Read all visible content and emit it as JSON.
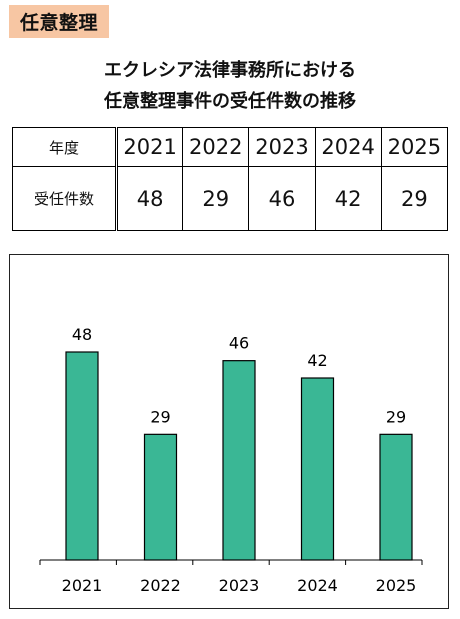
{
  "tag": "任意整理",
  "title": {
    "line1": "エクレシア法律事務所における",
    "line2": "任意整理事件の受任件数の推移"
  },
  "table": {
    "row_labels": [
      "年度",
      "受任件数"
    ],
    "years": [
      "2021",
      "2022",
      "2023",
      "2024",
      "2025"
    ],
    "counts": [
      "48",
      "29",
      "46",
      "42",
      "29"
    ]
  },
  "colors": {
    "bar": "#3ab795",
    "tag": "#f7c6a3"
  },
  "chart_data": {
    "type": "bar",
    "categories": [
      "2021",
      "2022",
      "2023",
      "2024",
      "2025"
    ],
    "values": [
      48,
      29,
      46,
      42,
      29
    ],
    "ylim": [
      0,
      60
    ],
    "grid": false,
    "legend": "none"
  }
}
